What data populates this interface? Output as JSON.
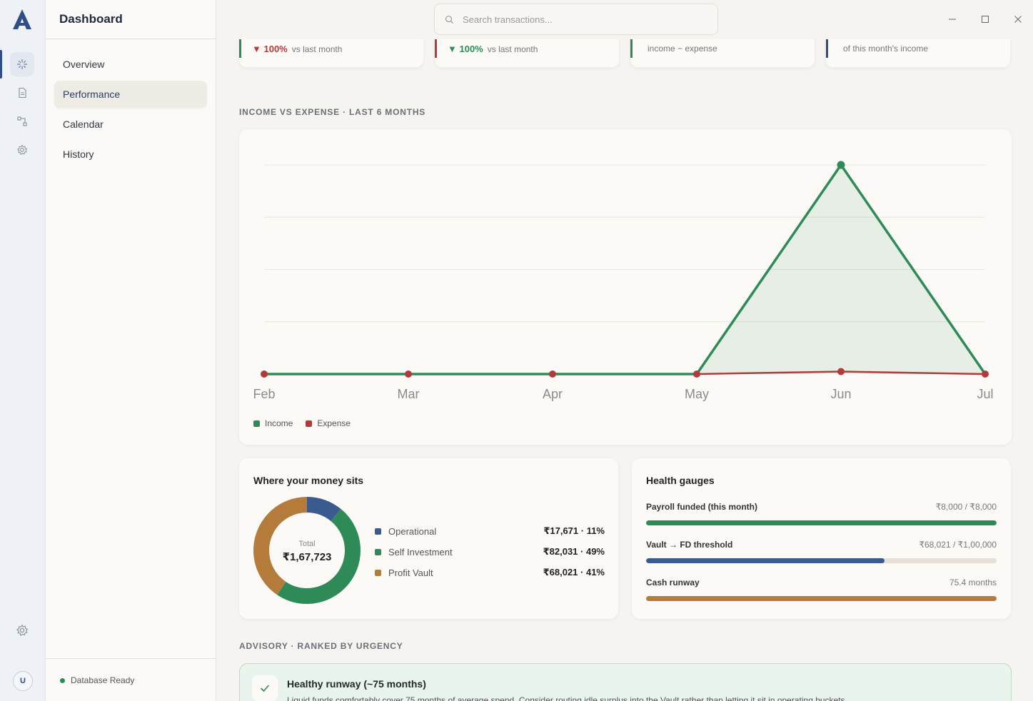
{
  "app": {
    "title": "Dashboard",
    "user_initial": "U",
    "db_status": "Database Ready"
  },
  "search": {
    "placeholder": "Search transactions..."
  },
  "sidebar": {
    "items": [
      {
        "label": "Overview"
      },
      {
        "label": "Performance"
      },
      {
        "label": "Calendar"
      },
      {
        "label": "History"
      }
    ]
  },
  "kpis": [
    {
      "change": "▼ 100%",
      "note": "vs last month",
      "accent": "#2e8b57",
      "change_color": "#b23a3a"
    },
    {
      "change": "▼ 100%",
      "note": "vs last month",
      "accent": "#b23a3a",
      "change_color": "#2e8b57"
    },
    {
      "change": "",
      "note": "income − expense",
      "accent": "#2e8b57",
      "change_color": "#2e8b57"
    },
    {
      "change": "",
      "note": "of this month's income",
      "accent": "#2f4e88",
      "change_color": "#2f4e88"
    }
  ],
  "income_expense": {
    "section_label": "INCOME VS EXPENSE · LAST 6 MONTHS",
    "legend": {
      "income": "Income",
      "expense": "Expense"
    }
  },
  "chart_data": {
    "type": "line",
    "categories": [
      "Feb",
      "Mar",
      "Apr",
      "May",
      "Jun",
      "Jul"
    ],
    "series": [
      {
        "name": "Income",
        "color": "#2e8b57",
        "values": [
          0,
          0,
          0,
          0,
          100,
          0
        ]
      },
      {
        "name": "Expense",
        "color": "#b23a3a",
        "values": [
          0,
          0,
          0,
          0,
          1.2,
          0
        ]
      }
    ],
    "ylim": [
      0,
      100
    ],
    "grid": true,
    "legend": "bottom-left",
    "title": "",
    "xlabel": "",
    "ylabel": ""
  },
  "money": {
    "title": "Where your money sits",
    "total_label": "Total",
    "total_value": "₹1,67,723",
    "items": [
      {
        "label": "Operational",
        "value": "₹17,671 · 11%",
        "color": "#3b5a8f",
        "share": 11
      },
      {
        "label": "Self Investment",
        "value": "₹82,031 · 49%",
        "color": "#2e8b57",
        "share": 49
      },
      {
        "label": "Profit Vault",
        "value": "₹68,021 · 41%",
        "color": "#b57b3a",
        "share": 41
      }
    ]
  },
  "gauges": {
    "title": "Health gauges",
    "items": [
      {
        "label": "Payroll funded (this month)",
        "value": "₹8,000 / ₹8,000",
        "fraction": 1.0,
        "color": "#2e8b57"
      },
      {
        "label": "Vault → FD threshold",
        "value": "₹68,021 / ₹1,00,000",
        "fraction": 0.68,
        "color": "#3b5a8f"
      },
      {
        "label": "Cash runway",
        "value": "75.4 months",
        "fraction": 1.0,
        "color": "#b57b3a"
      }
    ]
  },
  "advisory": {
    "section_label": "ADVISORY · RANKED BY URGENCY",
    "title": "Healthy runway (~75 months)",
    "body": "Liquid funds comfortably cover 75 months of average spend. Consider routing idle surplus into the Vault rather than letting it sit in operating buckets."
  }
}
